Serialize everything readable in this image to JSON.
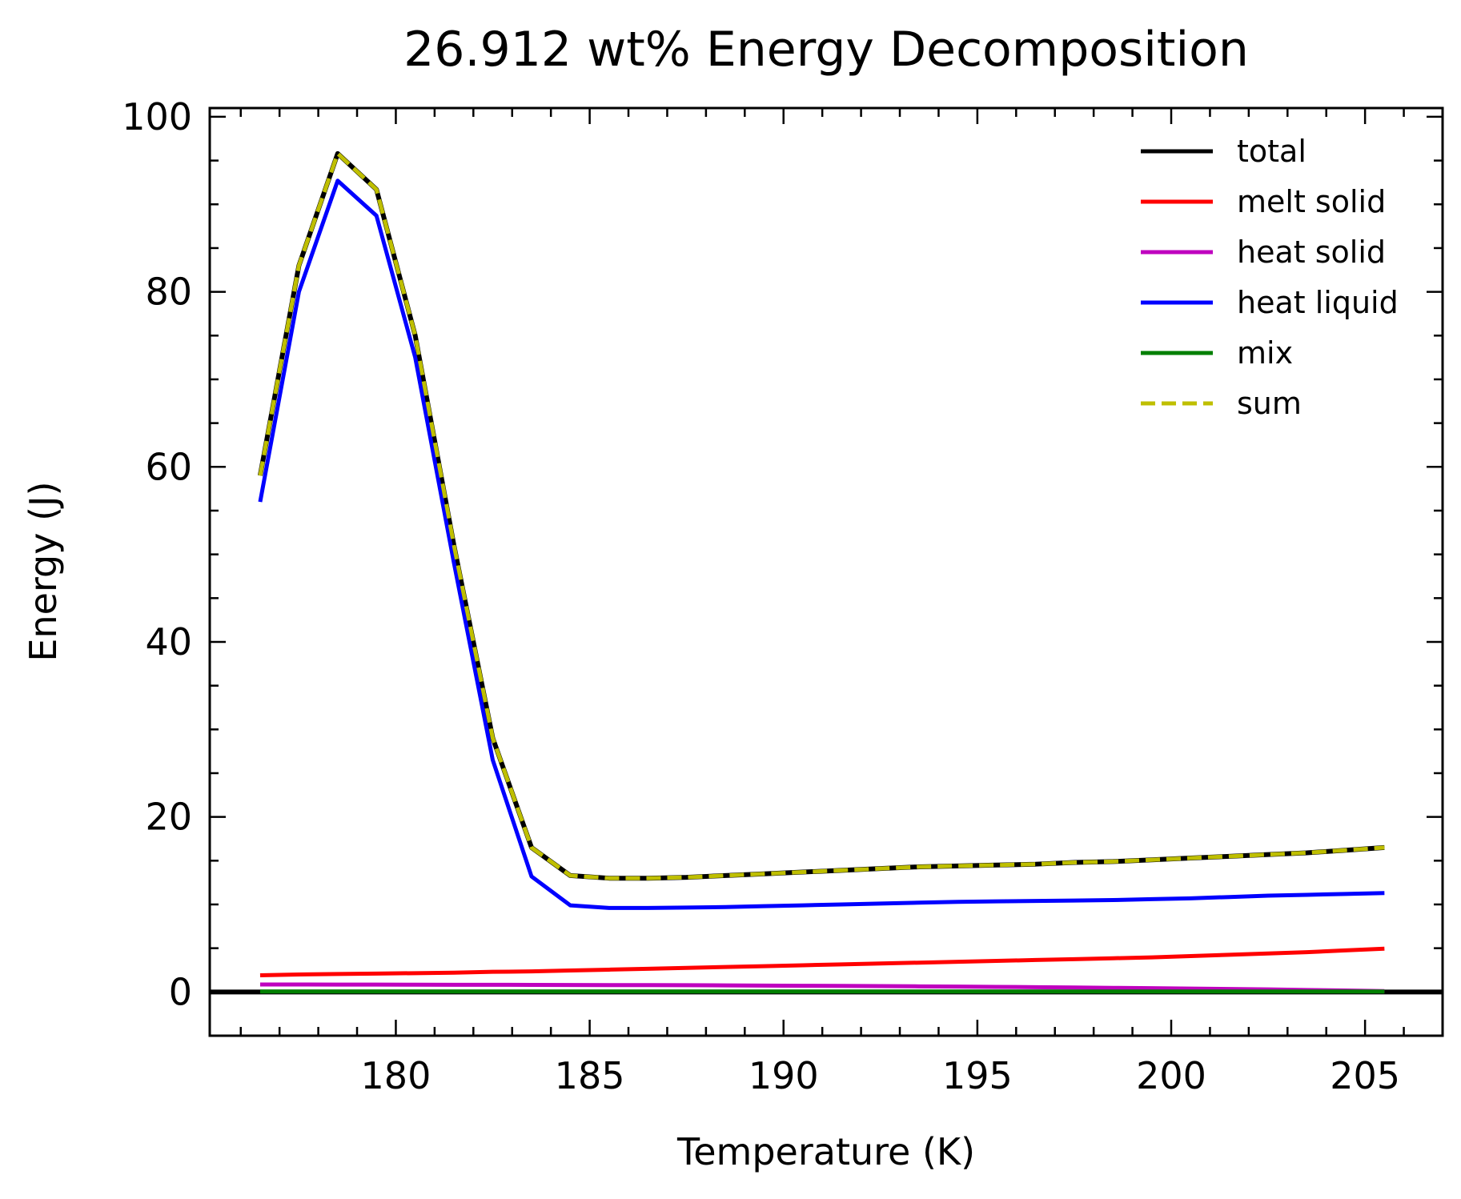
{
  "chart_data": {
    "type": "line",
    "title": "26.912 wt% Energy Decomposition",
    "xlabel": "Temperature (K)",
    "ylabel": "Energy (J)",
    "xlim": [
      175.2,
      207.0
    ],
    "ylim": [
      -5,
      101
    ],
    "xticks": [
      180,
      185,
      190,
      195,
      200,
      205
    ],
    "yticks": [
      0,
      20,
      40,
      60,
      80,
      100
    ],
    "grid": false,
    "legend_position": "top-right",
    "horizontal_line": {
      "y": 0,
      "color": "#000000"
    },
    "x": [
      176.5,
      177.5,
      178.5,
      179.5,
      180.5,
      181.5,
      182.5,
      183.5,
      184.5,
      185.5,
      186.5,
      187.5,
      188.5,
      189.5,
      190.5,
      191.5,
      192.5,
      193.5,
      194.5,
      195.5,
      196.5,
      197.5,
      198.5,
      199.5,
      200.5,
      201.5,
      202.5,
      203.5,
      204.5,
      205.5
    ],
    "series": [
      {
        "name": "total",
        "color": "#000000",
        "dash": "solid",
        "values": [
          59.0,
          83.0,
          95.8,
          91.7,
          75.0,
          51.0,
          29.0,
          16.5,
          13.3,
          13.0,
          13.0,
          13.1,
          13.3,
          13.5,
          13.7,
          13.9,
          14.1,
          14.3,
          14.4,
          14.5,
          14.6,
          14.8,
          14.9,
          15.1,
          15.3,
          15.5,
          15.7,
          15.9,
          16.2,
          16.5
        ]
      },
      {
        "name": "melt solid",
        "color": "#ff0000",
        "dash": "solid",
        "values": [
          1.9,
          2.0,
          2.05,
          2.1,
          2.15,
          2.2,
          2.3,
          2.35,
          2.45,
          2.55,
          2.65,
          2.75,
          2.85,
          2.95,
          3.05,
          3.15,
          3.25,
          3.35,
          3.45,
          3.55,
          3.65,
          3.75,
          3.85,
          3.95,
          4.1,
          4.25,
          4.4,
          4.55,
          4.75,
          4.95
        ]
      },
      {
        "name": "heat solid",
        "color": "#bf00bf",
        "dash": "solid",
        "values": [
          0.85,
          0.85,
          0.84,
          0.84,
          0.83,
          0.82,
          0.82,
          0.81,
          0.8,
          0.79,
          0.78,
          0.77,
          0.75,
          0.73,
          0.71,
          0.69,
          0.67,
          0.64,
          0.61,
          0.58,
          0.55,
          0.51,
          0.47,
          0.43,
          0.39,
          0.34,
          0.29,
          0.23,
          0.17,
          0.1
        ]
      },
      {
        "name": "heat liquid",
        "color": "#0000ff",
        "dash": "solid",
        "values": [
          56.0,
          80.0,
          92.7,
          88.7,
          72.5,
          49.0,
          26.5,
          13.2,
          9.9,
          9.6,
          9.6,
          9.65,
          9.7,
          9.8,
          9.9,
          10.0,
          10.1,
          10.2,
          10.3,
          10.35,
          10.4,
          10.45,
          10.5,
          10.6,
          10.7,
          10.85,
          11.0,
          11.1,
          11.2,
          11.3
        ]
      },
      {
        "name": "mix",
        "color": "#007f00",
        "dash": "solid",
        "values": [
          0.05,
          0.05,
          0.05,
          0.05,
          0.05,
          0.05,
          0.05,
          0.05,
          0.05,
          0.05,
          0.05,
          0.05,
          0.05,
          0.05,
          0.05,
          0.05,
          0.05,
          0.05,
          0.05,
          0.05,
          0.05,
          0.05,
          0.05,
          0.05,
          0.05,
          0.05,
          0.05,
          0.05,
          0.05,
          0.05
        ]
      },
      {
        "name": "sum",
        "color": "#bfbf00",
        "dash": "dashed",
        "values": [
          59.0,
          83.0,
          95.8,
          91.7,
          75.0,
          51.0,
          29.0,
          16.5,
          13.3,
          13.0,
          13.0,
          13.1,
          13.3,
          13.5,
          13.7,
          13.9,
          14.1,
          14.3,
          14.4,
          14.5,
          14.6,
          14.8,
          14.9,
          15.1,
          15.3,
          15.5,
          15.7,
          15.9,
          16.2,
          16.5
        ]
      }
    ]
  }
}
